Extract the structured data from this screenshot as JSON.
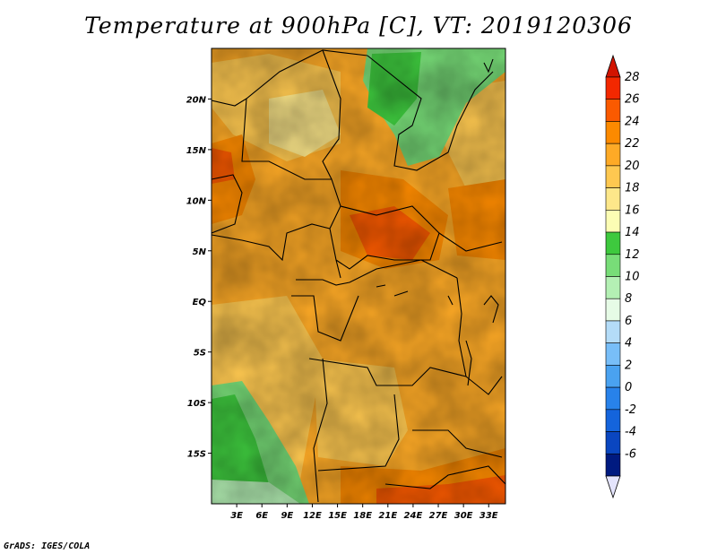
{
  "title": "Temperature at 900hPa [C], VT: 2019120306",
  "credit": "GrADS: IGES/COLA",
  "map": {
    "lon_range": [
      0,
      35
    ],
    "lat_range": [
      -20,
      25
    ],
    "lat_ticks": [
      {
        "lat": 20,
        "label": "20N"
      },
      {
        "lat": 15,
        "label": "15N"
      },
      {
        "lat": 10,
        "label": "10N"
      },
      {
        "lat": 5,
        "label": "5N"
      },
      {
        "lat": 0,
        "label": "EQ"
      },
      {
        "lat": -5,
        "label": "5S"
      },
      {
        "lat": -10,
        "label": "10S"
      },
      {
        "lat": -15,
        "label": "15S"
      }
    ],
    "lon_ticks": [
      {
        "lon": 3,
        "label": "3E"
      },
      {
        "lon": 6,
        "label": "6E"
      },
      {
        "lon": 9,
        "label": "9E"
      },
      {
        "lon": 12,
        "label": "12E"
      },
      {
        "lon": 15,
        "label": "15E"
      },
      {
        "lon": 18,
        "label": "18E"
      },
      {
        "lon": 21,
        "label": "21E"
      },
      {
        "lon": 24,
        "label": "24E"
      },
      {
        "lon": 27,
        "label": "27E"
      },
      {
        "lon": 30,
        "label": "30E"
      },
      {
        "lon": 33,
        "label": "33E"
      }
    ]
  },
  "colorbar": {
    "labels": [
      "28",
      "26",
      "24",
      "22",
      "20",
      "18",
      "16",
      "14",
      "12",
      "10",
      "8",
      "6",
      "4",
      "2",
      "0",
      "-2",
      "-4",
      "-6"
    ],
    "colors": [
      "#f32800",
      "#fa5a00",
      "#fc8a00",
      "#feaa26",
      "#fec850",
      "#fde78a",
      "#fcfdb4",
      "#3ec93e",
      "#78dd78",
      "#b4f0b4",
      "#e6fbe6",
      "#b4dcf8",
      "#78bef8",
      "#4aa2f0",
      "#2882ea",
      "#1464dc",
      "#0a46c0",
      "#001a80",
      "#0a0a6e"
    ],
    "arrow_top": "#d21400",
    "arrow_bottom": "#e4e4fc"
  }
}
